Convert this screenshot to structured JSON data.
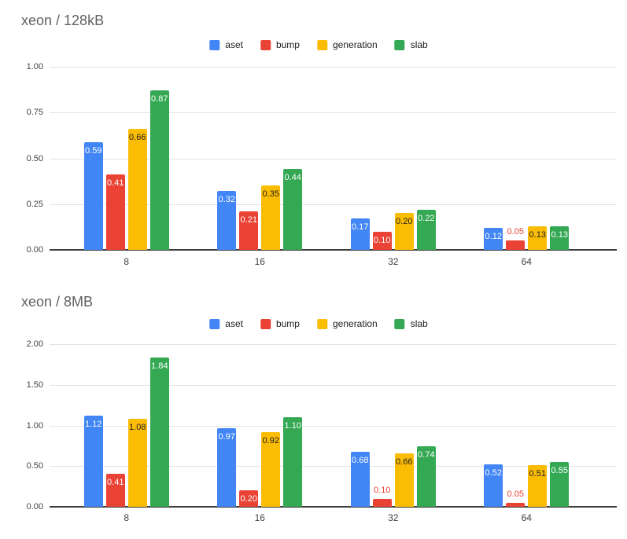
{
  "chart_data": [
    {
      "type": "bar",
      "title": "xeon / 128kB",
      "categories": [
        "8",
        "16",
        "32",
        "64"
      ],
      "series": [
        {
          "name": "aset",
          "color": "#4285f4",
          "inside_label_color": "#ffffff",
          "values": [
            0.59,
            0.32,
            0.17,
            0.12
          ]
        },
        {
          "name": "bump",
          "color": "#ea4335",
          "inside_label_color": "#ffffff",
          "values": [
            0.41,
            0.21,
            0.1,
            0.05
          ]
        },
        {
          "name": "generation",
          "color": "#fbbc04",
          "inside_label_color": "#212121",
          "values": [
            0.66,
            0.35,
            0.2,
            0.13
          ]
        },
        {
          "name": "slab",
          "color": "#34a853",
          "inside_label_color": "#ffffff",
          "values": [
            0.87,
            0.44,
            0.22,
            0.13
          ]
        }
      ],
      "ylim": [
        0,
        1
      ],
      "yticks": [
        "0.00",
        "0.25",
        "0.50",
        "0.75",
        "1.00"
      ],
      "xlabel": "",
      "ylabel": "",
      "grid": true,
      "legend_position": "top-center"
    },
    {
      "type": "bar",
      "title": "xeon / 8MB",
      "categories": [
        "8",
        "16",
        "32",
        "64"
      ],
      "series": [
        {
          "name": "aset",
          "color": "#4285f4",
          "inside_label_color": "#ffffff",
          "values": [
            1.12,
            0.97,
            0.68,
            0.52
          ]
        },
        {
          "name": "bump",
          "color": "#ea4335",
          "inside_label_color": "#ffffff",
          "values": [
            0.41,
            0.2,
            0.1,
            0.05
          ]
        },
        {
          "name": "generation",
          "color": "#fbbc04",
          "inside_label_color": "#212121",
          "values": [
            1.08,
            0.92,
            0.66,
            0.51
          ]
        },
        {
          "name": "slab",
          "color": "#34a853",
          "inside_label_color": "#ffffff",
          "values": [
            1.84,
            1.1,
            0.74,
            0.55
          ]
        }
      ],
      "ylim": [
        0,
        2
      ],
      "yticks": [
        "0.00",
        "0.50",
        "1.00",
        "1.50",
        "2.00"
      ],
      "xlabel": "",
      "ylabel": "",
      "grid": true,
      "legend_position": "top-center"
    }
  ],
  "palette": {
    "grid_color": "#e3e3e3",
    "baseline_color": "#3d3d3d",
    "title_color": "#616161",
    "tick_color": "#424242",
    "legend_text_color": "#212121",
    "background": "#ffffff"
  }
}
